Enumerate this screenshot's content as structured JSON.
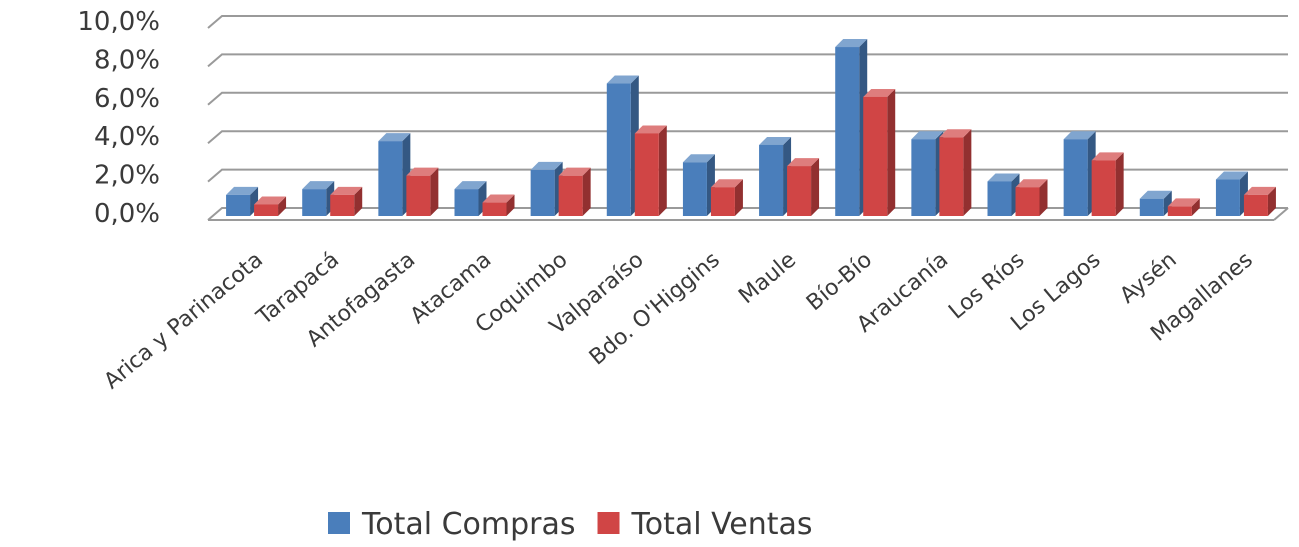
{
  "chart_data": {
    "type": "bar",
    "title": "",
    "xlabel": "",
    "ylabel": "",
    "ylim": [
      0,
      10
    ],
    "y_ticks": [
      "0,0%",
      "2,0%",
      "4,0%",
      "6,0%",
      "8,0%",
      "10,0%"
    ],
    "y_tick_values": [
      0,
      2,
      4,
      6,
      8,
      10
    ],
    "grid": true,
    "style": "3d-clustered",
    "legend_position": "bottom",
    "categories": [
      "Arica y Parinacota",
      "Tarapacá",
      "Antofagasta",
      "Atacama",
      "Coquimbo",
      "Valparaíso",
      "Bdo. O'Higgins",
      "Maule",
      "Bío-Bío",
      "Araucanía",
      "Los Ríos",
      "Los Lagos",
      "Aysén",
      "Magallanes"
    ],
    "series": [
      {
        "name": "Total Compras",
        "color": "#4a7ebb",
        "values": [
          1.1,
          1.4,
          3.9,
          1.4,
          2.4,
          6.9,
          2.8,
          3.7,
          8.8,
          4.0,
          1.8,
          4.0,
          0.9,
          1.9
        ]
      },
      {
        "name": "Total Ventas",
        "color": "#d04545",
        "values": [
          0.6,
          1.1,
          2.1,
          0.7,
          2.1,
          4.3,
          1.5,
          2.6,
          6.2,
          4.1,
          1.5,
          2.9,
          0.5,
          1.1
        ]
      }
    ]
  }
}
